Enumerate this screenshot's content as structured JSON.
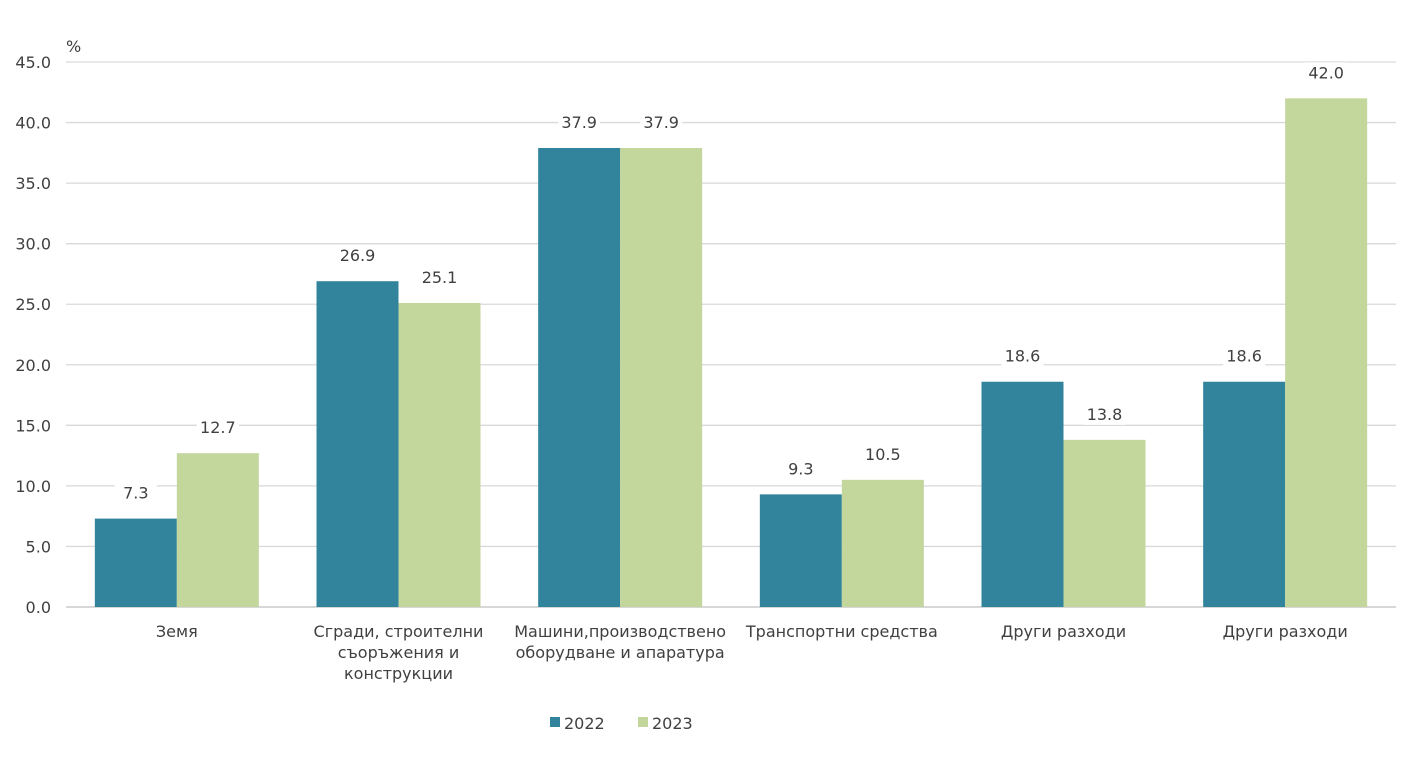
{
  "chart_data": {
    "type": "bar",
    "unit_label": "%",
    "categories": [
      [
        "Земя"
      ],
      [
        "Сгради, строителни",
        "съоръжения и",
        "конструкции"
      ],
      [
        "Машини,производствено",
        "оборудване и апаратура"
      ],
      [
        "Транспортни средства"
      ],
      [
        "Други разходи"
      ],
      [
        "Други разходи"
      ]
    ],
    "series": [
      {
        "name": "2022",
        "color": "#31849b",
        "values": [
          7.3,
          26.9,
          37.9,
          9.3,
          18.6,
          18.6
        ]
      },
      {
        "name": "2023",
        "color": "#c3d69b",
        "values": [
          12.7,
          25.1,
          37.9,
          10.5,
          13.8,
          42.0
        ]
      }
    ],
    "ylim": [
      0,
      45
    ],
    "yticks": [
      "0.0",
      "5.0",
      "10.0",
      "15.0",
      "20.0",
      "25.0",
      "30.0",
      "35.0",
      "40.0",
      "45.0"
    ],
    "grid": true,
    "legend_position": "bottom"
  }
}
